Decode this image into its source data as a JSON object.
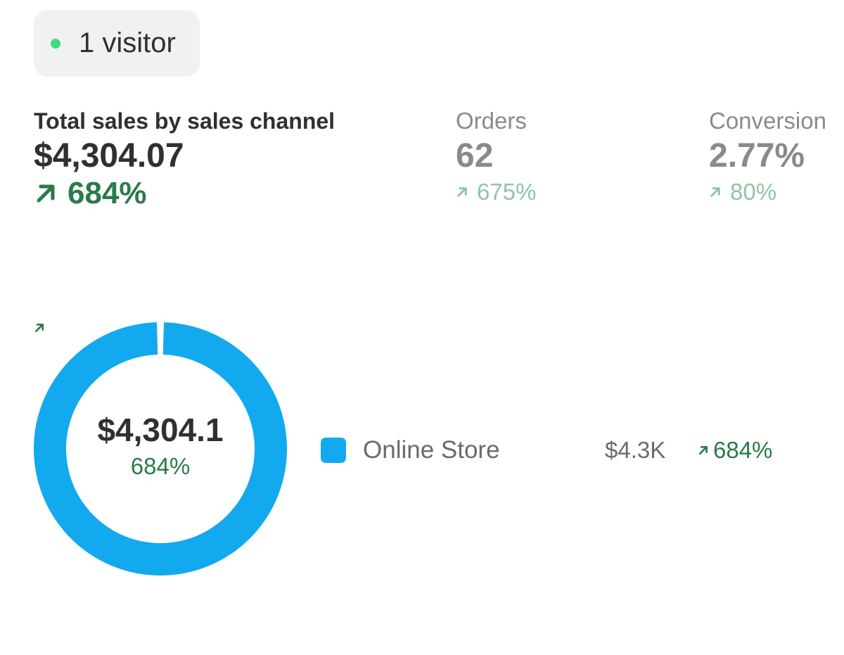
{
  "live_visitors": {
    "label": "1 visitor",
    "dot_color": "#3ddc84"
  },
  "metrics": {
    "total_sales": {
      "label": "Total sales by sales channel",
      "value": "$4,304.07",
      "change": "684%",
      "trend_icon": "arrow-up-right-icon"
    },
    "orders": {
      "label": "Orders",
      "value": "62",
      "change": "675%",
      "trend_icon": "arrow-up-right-icon"
    },
    "conversion": {
      "label": "Conversion",
      "value": "2.77%",
      "change": "80%",
      "trend_icon": "arrow-up-right-icon"
    }
  },
  "colors": {
    "positive": "#2b7a4b",
    "positive_muted": "#8fc4a4",
    "channel": "#13a9ee"
  },
  "donut": {
    "center_total": "$4,304.1",
    "center_change": "684%"
  },
  "legend": [
    {
      "name": "Online Store",
      "value": "$4.3K",
      "change": "684%",
      "color": "#13a9ee"
    }
  ],
  "chart_data": {
    "type": "pie",
    "categories": [
      "Online Store"
    ],
    "values": [
      4304.07
    ],
    "title": "",
    "legend_position": "right"
  }
}
